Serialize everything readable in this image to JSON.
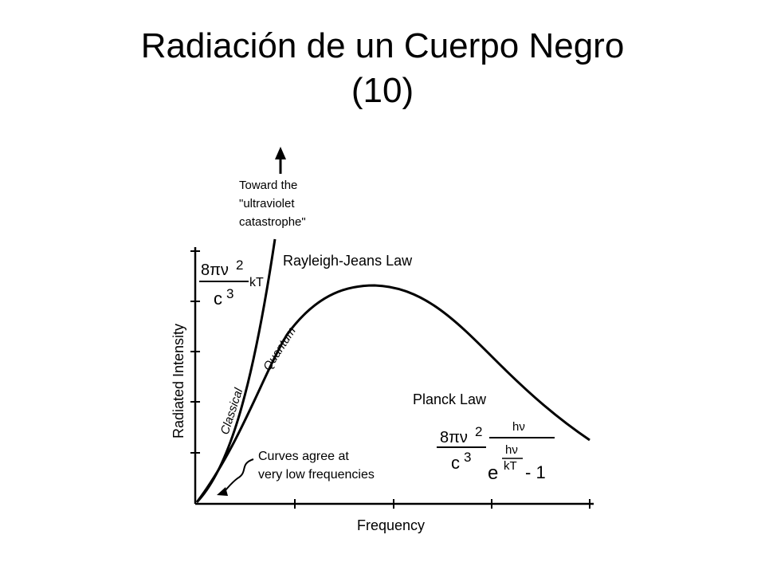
{
  "slide": {
    "title_line1": "Radiación de un Cuerpo Negro",
    "title_line2": "(10)"
  },
  "diagram": {
    "x_axis_label": "Frequency",
    "y_axis_label": "Radiated Intensity",
    "catastrophe_note": [
      "Toward the",
      "\"ultraviolet",
      "catastrophe\""
    ],
    "rayleigh_jeans_label": "Rayleigh-Jeans Law",
    "classical_label": "Classical",
    "quantum_label": "Quantum",
    "planck_label": "Planck Law",
    "agreement_note": [
      "Curves agree at",
      "very low frequencies"
    ],
    "rj_formula": {
      "num_prefix": "8πν",
      "num_exp": "2",
      "den_base": "c",
      "den_exp": "3",
      "factor": "kT"
    },
    "planck_formula": {
      "num_prefix": "8πν",
      "num_exp": "2",
      "den_base": "c",
      "den_exp": "3",
      "frac_num": "hν",
      "exp_base": "e",
      "exp_num": "hν",
      "exp_den": "kT",
      "minus_one": "- 1"
    }
  }
}
